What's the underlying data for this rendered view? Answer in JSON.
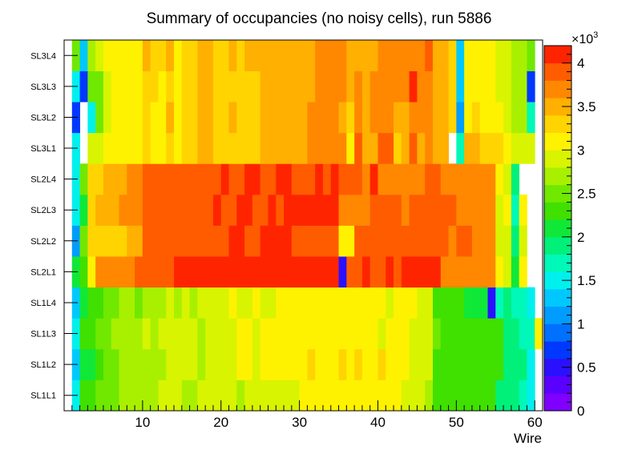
{
  "chart_data": {
    "type": "heatmap",
    "title": "Summary of occupancies (no noisy cells), run 5886",
    "xlabel": "Wire",
    "ylabel": "",
    "x_range": [
      0,
      61
    ],
    "x_ticks": [
      "10",
      "20",
      "30",
      "40",
      "50",
      "60"
    ],
    "x_tick_values": [
      10,
      20,
      30,
      40,
      50,
      60
    ],
    "y_categories": [
      "SL1L1",
      "SL1L2",
      "SL1L3",
      "SL1L4",
      "SL2L1",
      "SL2L2",
      "SL2L3",
      "SL2L4",
      "SL3L1",
      "SL3L2",
      "SL3L3",
      "SL3L4"
    ],
    "colorbar": {
      "range": [
        0,
        4200
      ],
      "ticks": [
        "0",
        "0.5",
        "1",
        "1.5",
        "2",
        "2.5",
        "3",
        "3.5",
        "4"
      ],
      "tick_values": [
        0,
        500,
        1000,
        1500,
        2000,
        2500,
        3000,
        3500,
        4000
      ],
      "exponent_label": "×10",
      "exponent_power": "3",
      "palette": [
        "#7f00ff",
        "#5a00ff",
        "#2a10ff",
        "#0038ff",
        "#0070ff",
        "#009cff",
        "#00c8ff",
        "#00f0ee",
        "#00f8b8",
        "#00f07a",
        "#10e838",
        "#40e000",
        "#70e800",
        "#a8f000",
        "#d8f400",
        "#fff200",
        "#ffd400",
        "#ffb000",
        "#ff8800",
        "#ff5c00",
        "#ff2400"
      ]
    },
    "rows": [
      {
        "name": "SL1L1",
        "values": [
          0,
          1500,
          2300,
          2300,
          2400,
          2400,
          2500,
          2600,
          2600,
          2600,
          2700,
          2700,
          2800,
          2800,
          2800,
          2600,
          2700,
          2800,
          2900,
          2900,
          2800,
          2900,
          2700,
          2900,
          2900,
          2800,
          2800,
          2800,
          2900,
          2900,
          3000,
          3000,
          3000,
          3100,
          3000,
          3000,
          3100,
          3000,
          3000,
          3000,
          3100,
          3000,
          3000,
          2900,
          2800,
          2800,
          2600,
          2300,
          2300,
          2200,
          2200,
          2200,
          2200,
          2200,
          2200,
          1900,
          1900,
          1800,
          1700,
          1500,
          0
        ]
      },
      {
        "name": "SL1L2",
        "values": [
          0,
          1200,
          2100,
          2100,
          2300,
          2500,
          2500,
          2600,
          2600,
          2600,
          2700,
          2700,
          2700,
          2800,
          2800,
          2900,
          2800,
          2700,
          2900,
          2800,
          2900,
          2900,
          3000,
          3000,
          2900,
          3000,
          3000,
          3000,
          3000,
          3000,
          3000,
          3300,
          3000,
          3000,
          3000,
          3200,
          3100,
          3200,
          3000,
          3000,
          3200,
          3100,
          3000,
          3000,
          2900,
          2800,
          2800,
          2200,
          2300,
          2300,
          2200,
          2200,
          2200,
          2200,
          2200,
          2200,
          1900,
          1900,
          1800,
          1500,
          0
        ]
      },
      {
        "name": "SL1L3",
        "values": [
          0,
          1400,
          2300,
          2300,
          2500,
          2500,
          2600,
          2700,
          2700,
          2600,
          2800,
          2700,
          2800,
          2900,
          2900,
          2800,
          2800,
          2700,
          2900,
          2800,
          2800,
          2900,
          3000,
          3000,
          2900,
          3000,
          3000,
          3000,
          3000,
          3000,
          3100,
          3000,
          3100,
          3000,
          3000,
          3000,
          3000,
          3000,
          3000,
          3000,
          2900,
          3000,
          3000,
          3000,
          2900,
          2800,
          2800,
          2400,
          2300,
          2300,
          2300,
          2300,
          2200,
          2200,
          2200,
          2200,
          1900,
          1800,
          1700,
          1600,
          3000
        ]
      },
      {
        "name": "SL1L4",
        "values": [
          0,
          1200,
          2000,
          2300,
          2300,
          2400,
          2500,
          2600,
          2600,
          2500,
          2700,
          2700,
          2600,
          2800,
          2700,
          2900,
          2700,
          2800,
          2900,
          2800,
          2800,
          3000,
          2900,
          2900,
          3000,
          2900,
          2900,
          3000,
          3000,
          3000,
          3100,
          3000,
          3000,
          3000,
          3000,
          3000,
          3000,
          3000,
          3000,
          3000,
          3000,
          2900,
          3000,
          3000,
          3000,
          2900,
          2800,
          2300,
          2200,
          2300,
          2200,
          2100,
          2000,
          2000,
          400,
          1700,
          1800,
          1700,
          1700,
          1400,
          0
        ]
      },
      {
        "name": "SL2L1",
        "values": [
          0,
          2000,
          2300,
          3000,
          3700,
          3700,
          3700,
          3700,
          3700,
          3800,
          3800,
          3800,
          3800,
          3800,
          4000,
          4000,
          4000,
          4000,
          4000,
          4000,
          4100,
          4100,
          4000,
          4000,
          4000,
          4000,
          4000,
          4100,
          4000,
          4000,
          4100,
          4100,
          4000,
          4100,
          4100,
          400,
          3800,
          3800,
          4000,
          3800,
          3800,
          4000,
          3900,
          4000,
          4000,
          4000,
          4000,
          4000,
          3600,
          3600,
          3700,
          3700,
          3700,
          3600,
          3700,
          3000,
          2800,
          2000,
          3000,
          0,
          0
        ]
      },
      {
        "name": "SL2L2",
        "values": [
          0,
          1000,
          2500,
          3200,
          3300,
          3300,
          3300,
          3300,
          3400,
          3400,
          3800,
          3800,
          3900,
          3800,
          3900,
          3900,
          3900,
          3900,
          3900,
          3900,
          3900,
          4000,
          4000,
          3900,
          3900,
          4000,
          4000,
          4000,
          4000,
          3900,
          3900,
          3900,
          3900,
          3900,
          3900,
          3100,
          3000,
          3800,
          3800,
          3800,
          3800,
          3900,
          3900,
          3900,
          3900,
          3900,
          3900,
          3900,
          3900,
          3600,
          3800,
          3900,
          3600,
          3600,
          3700,
          2900,
          2800,
          1800,
          2800,
          0,
          0
        ]
      },
      {
        "name": "SL2L3",
        "values": [
          0,
          1500,
          2100,
          3200,
          3500,
          3500,
          3500,
          3600,
          3600,
          3600,
          3900,
          3900,
          3900,
          3900,
          3900,
          3900,
          3900,
          3900,
          3900,
          4000,
          3900,
          3900,
          4000,
          4000,
          3900,
          3900,
          4000,
          3900,
          4000,
          4000,
          4000,
          4000,
          4000,
          4000,
          4000,
          3600,
          3600,
          3600,
          3700,
          3800,
          3800,
          3900,
          3900,
          3700,
          3900,
          3800,
          3800,
          3800,
          3900,
          3800,
          3700,
          3600,
          3700,
          3700,
          3600,
          2900,
          3000,
          1700,
          3000,
          0,
          0
        ]
      },
      {
        "name": "SL2L4",
        "values": [
          0,
          1500,
          2400,
          3200,
          3300,
          3500,
          3500,
          3500,
          3600,
          3600,
          3900,
          3900,
          3900,
          3900,
          3900,
          3900,
          3900,
          3900,
          3900,
          3900,
          4000,
          3900,
          3900,
          4000,
          4000,
          3900,
          3900,
          4100,
          4100,
          3900,
          3900,
          3900,
          4000,
          3900,
          4000,
          3900,
          3900,
          3800,
          3600,
          4000,
          3700,
          3700,
          3700,
          3700,
          3700,
          3700,
          3900,
          3900,
          3700,
          3700,
          3700,
          3700,
          3700,
          3700,
          3600,
          3100,
          2900,
          1800,
          0,
          0,
          0
        ]
      },
      {
        "name": "SL3L1",
        "values": [
          0,
          1500,
          0,
          2800,
          2800,
          3000,
          3000,
          3000,
          3100,
          3100,
          3200,
          3100,
          3100,
          3300,
          3100,
          3300,
          3200,
          3400,
          3400,
          3300,
          3200,
          3300,
          3200,
          3300,
          3300,
          3400,
          3400,
          3400,
          3500,
          3500,
          3400,
          3600,
          3600,
          3600,
          3600,
          3600,
          3100,
          3900,
          3500,
          3500,
          3800,
          3800,
          3200,
          3500,
          3800,
          3500,
          3700,
          3500,
          3400,
          0,
          1700,
          3400,
          3400,
          3300,
          3300,
          3200,
          3000,
          2800,
          2800,
          2900,
          0
        ]
      },
      {
        "name": "SL3L2",
        "values": [
          0,
          600,
          0,
          1500,
          2500,
          2800,
          3000,
          3000,
          3100,
          3100,
          3300,
          3100,
          3100,
          3400,
          3100,
          3300,
          3300,
          3400,
          3400,
          3300,
          3300,
          3400,
          3200,
          3300,
          3300,
          3400,
          3400,
          3400,
          3500,
          3500,
          3400,
          3600,
          3600,
          3600,
          3600,
          3500,
          3300,
          3700,
          3500,
          3600,
          3700,
          3600,
          3400,
          3500,
          3600,
          3600,
          3700,
          3500,
          3400,
          3200,
          1000,
          3000,
          3200,
          3100,
          3100,
          3000,
          2800,
          2600,
          2600,
          1600,
          0
        ]
      },
      {
        "name": "SL3L3",
        "values": [
          0,
          1400,
          600,
          2500,
          2500,
          2900,
          3000,
          3000,
          3100,
          3100,
          3200,
          3200,
          3100,
          3300,
          3100,
          3300,
          3300,
          3400,
          3400,
          3300,
          3200,
          3300,
          3300,
          3300,
          3300,
          3400,
          3400,
          3400,
          3500,
          3500,
          3400,
          3500,
          3600,
          3600,
          3600,
          3600,
          3400,
          3600,
          3500,
          3600,
          3700,
          3700,
          3600,
          3600,
          4000,
          3600,
          3700,
          3500,
          3400,
          3300,
          1300,
          3000,
          3100,
          3000,
          3000,
          2900,
          2800,
          2600,
          2600,
          600,
          0
        ]
      },
      {
        "name": "SL3L4",
        "values": [
          0,
          2500,
          1200,
          2700,
          2900,
          3000,
          3000,
          3000,
          3100,
          3100,
          3400,
          3200,
          3200,
          3400,
          3100,
          3300,
          3300,
          3400,
          3400,
          3300,
          3300,
          3400,
          3300,
          3400,
          3400,
          3400,
          3400,
          3400,
          3500,
          3500,
          3400,
          3500,
          3600,
          3600,
          3600,
          3600,
          3500,
          3500,
          3500,
          3500,
          3600,
          3600,
          3600,
          3600,
          3700,
          3600,
          3800,
          3500,
          3400,
          3300,
          1300,
          3000,
          3100,
          3000,
          3000,
          2900,
          2800,
          2600,
          2600,
          2400,
          0
        ]
      }
    ]
  }
}
